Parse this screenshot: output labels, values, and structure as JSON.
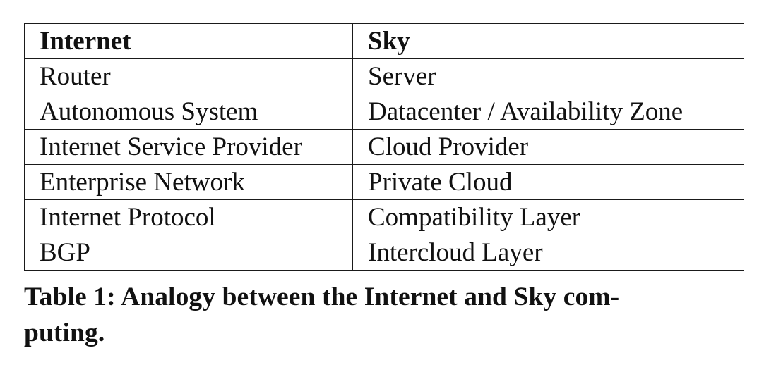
{
  "table": {
    "headers": [
      "Internet",
      "Sky"
    ],
    "rows": [
      [
        "Router",
        "Server"
      ],
      [
        "Autonomous System",
        "Datacenter / Availability Zone"
      ],
      [
        "Internet Service Provider",
        "Cloud Provider"
      ],
      [
        "Enterprise Network",
        "Private Cloud"
      ],
      [
        "Internet Protocol",
        "Compatibility Layer"
      ],
      [
        "BGP",
        "Intercloud Layer"
      ]
    ]
  },
  "caption": {
    "line1": "Table 1: Analogy between the Internet and Sky com-",
    "line2": "puting."
  }
}
